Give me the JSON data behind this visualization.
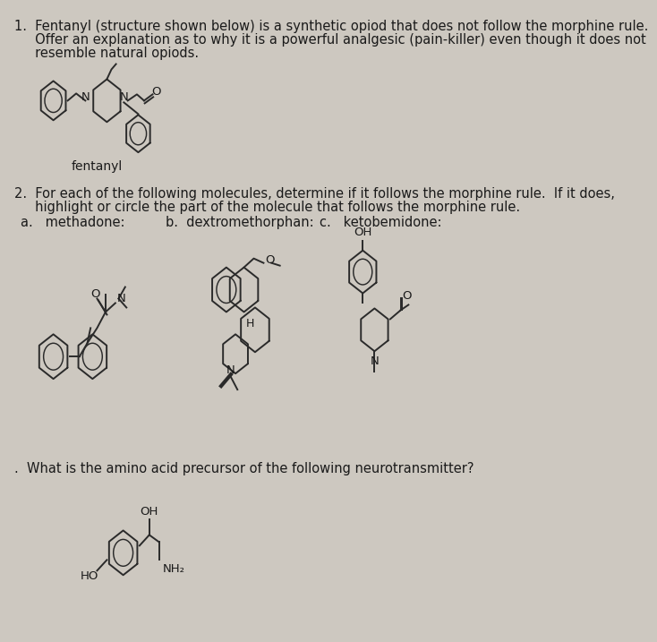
{
  "background_color": "#cdc8c0",
  "text_color": "#1a1a1a",
  "line_color": "#2a2a2a",
  "title1": "1.  Fentanyl (structure shown below) is a synthetic opiod that does not follow the morphine rule.",
  "title1b": "     Offer an explanation as to why it is a powerful analgesic (pain-killer) even though it does not",
  "title1c": "     resemble natural opiods.",
  "fentanyl_label": "fentanyl",
  "title2": "2.  For each of the following molecules, determine if it follows the morphine rule.  If it does,",
  "title2b": "     highlight or circle the part of the molecule that follows the morphine rule.",
  "label_a": "a.   methadone:",
  "label_b": "b.  dextromethorphan:",
  "label_c": "c.   ketobemidone:",
  "title3": ".  What is the amino acid precursor of the following neurotransmitter?",
  "font_size_main": 10.5,
  "font_size_small": 9.0,
  "font_size_label": 8.5
}
